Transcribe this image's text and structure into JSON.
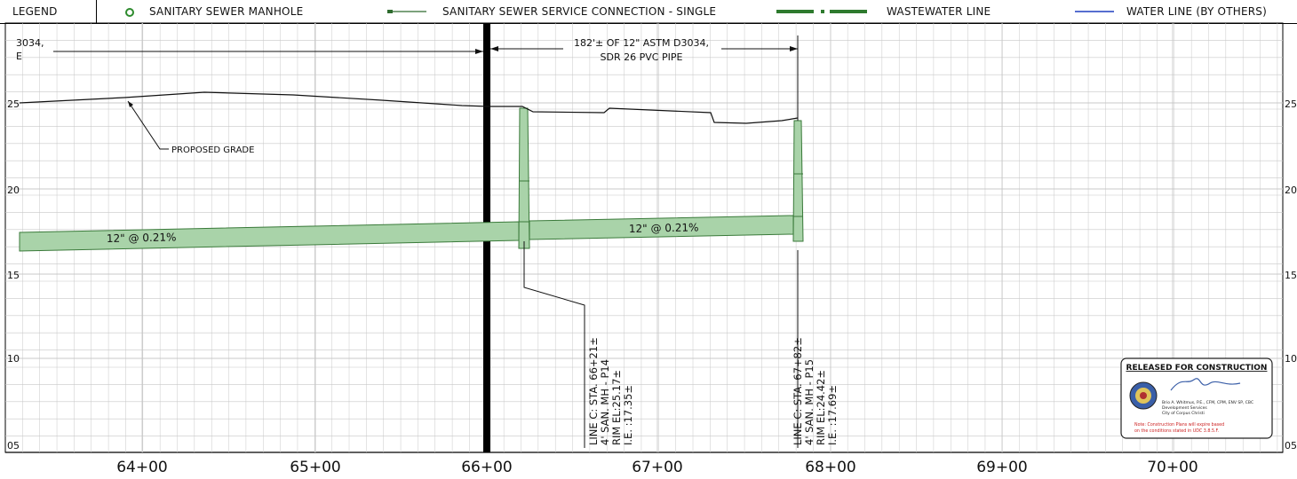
{
  "legend": {
    "title": "LEGEND",
    "items": [
      {
        "label": "SANITARY SEWER MANHOLE"
      },
      {
        "label": "SANITARY SEWER SERVICE CONNECTION - SINGLE"
      },
      {
        "label": "WASTEWATER LINE"
      },
      {
        "label": "WATER LINE (BY OTHERS)"
      }
    ]
  },
  "elevation_labels": [
    "25",
    "20",
    "15",
    "10",
    "05"
  ],
  "station_labels": [
    "64+00",
    "65+00",
    "66+00",
    "67+00",
    "68+00",
    "69+00",
    "70+00"
  ],
  "annotations": {
    "pipe_note_left": "3034,",
    "pipe_note_left_2": "E",
    "pipe_note_line1": "182'± OF 12\" ASTM D3034,",
    "pipe_note_line2": "SDR 26 PVC PIPE",
    "proposed_grade": "PROPOSED GRADE",
    "slope_left": "12\" @ 0.21%",
    "slope_right": "12\" @ 0.21%"
  },
  "manholes": [
    {
      "station": "LINE C: STA. 66+21±",
      "type": "4' SAN. MH - P14",
      "rim": "RIM EL:25.17±",
      "ie": "I.E. :17.35±"
    },
    {
      "station": "LINE C: STA. 67+82±",
      "type": "4' SAN. MH - P15",
      "rim": "RIM EL:24.42±",
      "ie": "I.E. :17.69±"
    }
  ],
  "stamp": {
    "title": "RELEASED FOR CONSTRUCTION",
    "line1": "Brio A. Whitmus, P.E., CFM, CPM, ENV SP, CBC",
    "line2": "Development Services",
    "line3": "City of Corpus Christi",
    "note1": "Note: Construction Plans will expire based",
    "note2": "on the conditions stated in UDC 3.8.5.F."
  },
  "colors": {
    "pipe_fill": "#a9d3a9",
    "pipe_stroke": "#3a7a3a",
    "grid": "#c8c8c8",
    "water_line": "#1f3fbf",
    "stamp_red": "#cc1f1f"
  }
}
